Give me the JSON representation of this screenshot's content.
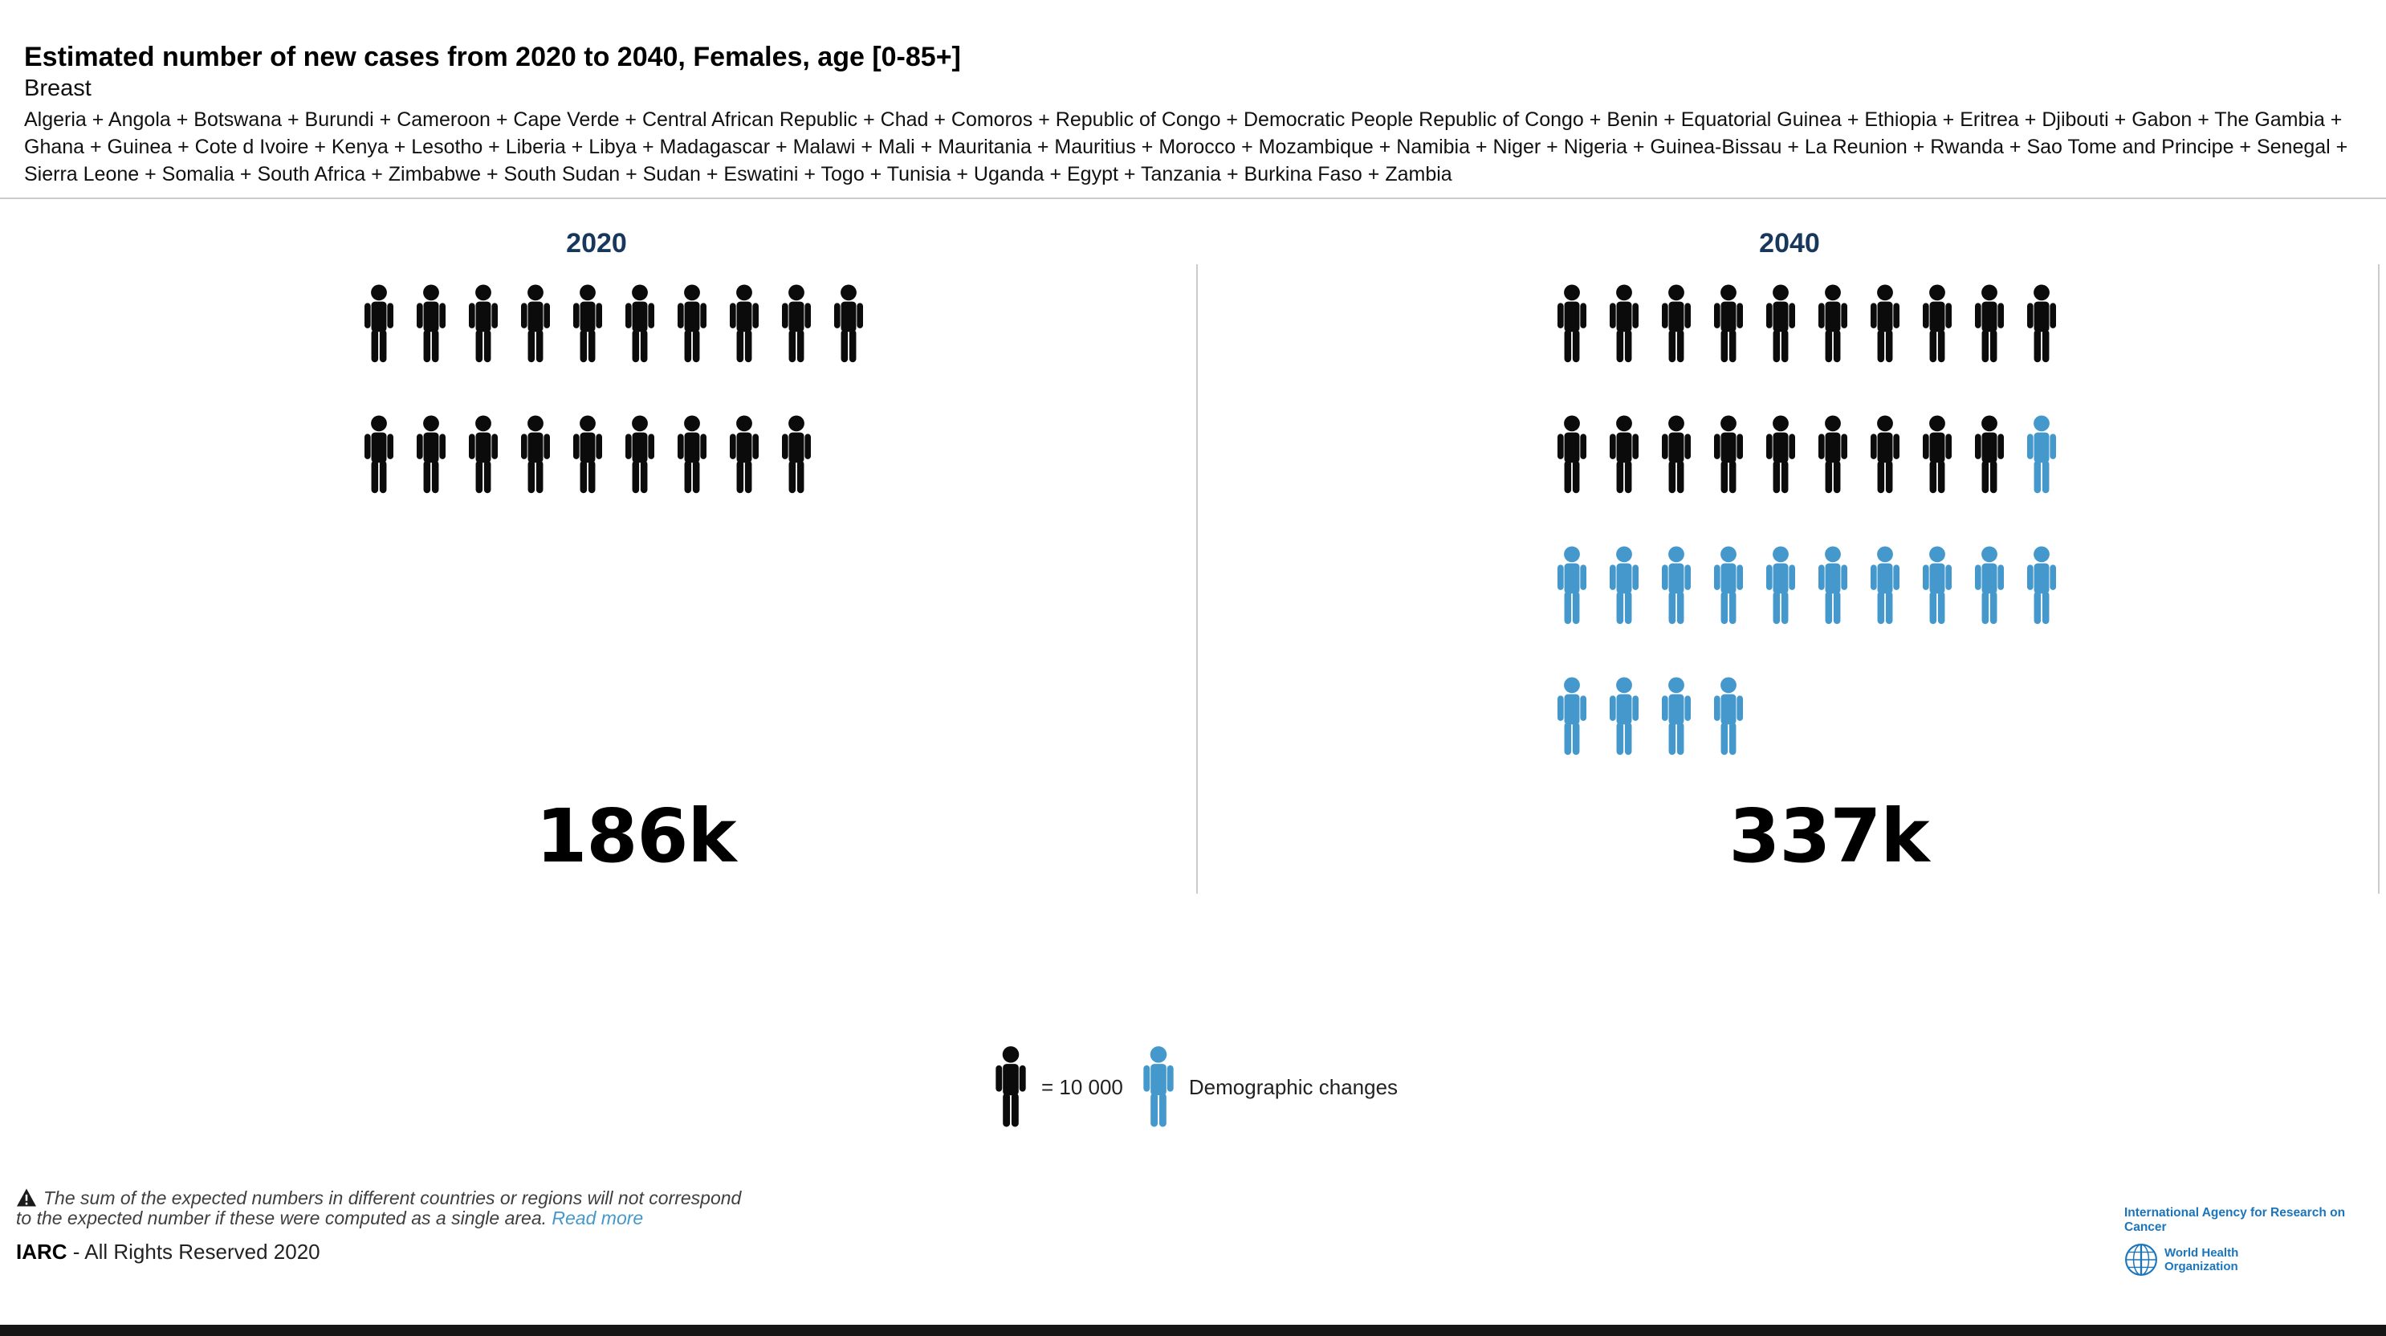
{
  "header": {
    "title": "Estimated number of new cases from 2020 to 2040, Females, age [0-85+]",
    "subtitle": "Breast",
    "population": "Algeria + Angola + Botswana + Burundi + Cameroon + Cape Verde + Central African Republic + Chad + Comoros + Republic of Congo + Democratic People Republic of Congo + Benin + Equatorial Guinea + Ethiopia + Eritrea + Djibouti + Gabon + The Gambia + Ghana + Guinea + Cote d Ivoire + Kenya + Lesotho + Liberia + Libya + Madagascar + Malawi + Mali + Mauritania + Mauritius + Morocco + Mozambique + Namibia + Niger + Nigeria + Guinea-Bissau + La Reunion + Rwanda + Sao Tome and Principe + Senegal + Sierra Leone + Somalia + South Africa + Zimbabwe + South Sudan + Sudan + Eswatini + Togo + Tunisia + Uganda + Egypt + Tanzania + Burkina Faso + Zambia"
  },
  "chart_data": {
    "type": "pictogram",
    "title": "Estimated number of new cases from 2020 to 2040, Females, age [0-85+]",
    "cancer_site": "Breast",
    "categories": [
      "2020",
      "2040"
    ],
    "values": [
      186000,
      337000
    ],
    "value_labels": [
      "186k",
      "337k"
    ],
    "icon_unit": 10000,
    "colors": {
      "cases": "#0b0b0b",
      "demographic_changes": "#4498cb"
    },
    "panels": [
      {
        "year": "2020",
        "total_label": "186k",
        "total_value": 186000,
        "icon_rows": [
          {
            "black": 10,
            "blue": 0
          },
          {
            "black": 9,
            "blue": 0
          }
        ]
      },
      {
        "year": "2040",
        "total_label": "337k",
        "total_value": 337000,
        "icon_rows": [
          {
            "black": 10,
            "blue": 0
          },
          {
            "black": 9,
            "blue": 1
          },
          {
            "black": 0,
            "blue": 10
          },
          {
            "black": 0,
            "blue": 4
          }
        ]
      }
    ],
    "legend": [
      {
        "icon": "black-person-icon",
        "label": "= 10 000",
        "color": "#0b0b0b"
      },
      {
        "icon": "blue-person-icon",
        "label": "Demographic changes",
        "color": "#4498cb"
      }
    ]
  },
  "footer": {
    "disclaimer_line1": "The sum of the expected numbers in different countries or regions will not correspond",
    "disclaimer_line2": "to the expected number if these were computed as a single area.",
    "read_more_label": "Read more",
    "copyright_bold": "IARC",
    "copyright_rest": " - All Rights Reserved 2020",
    "iarc_full_name": "International Agency for Research on Cancer",
    "who_line1": "World Health",
    "who_line2": "Organization"
  }
}
